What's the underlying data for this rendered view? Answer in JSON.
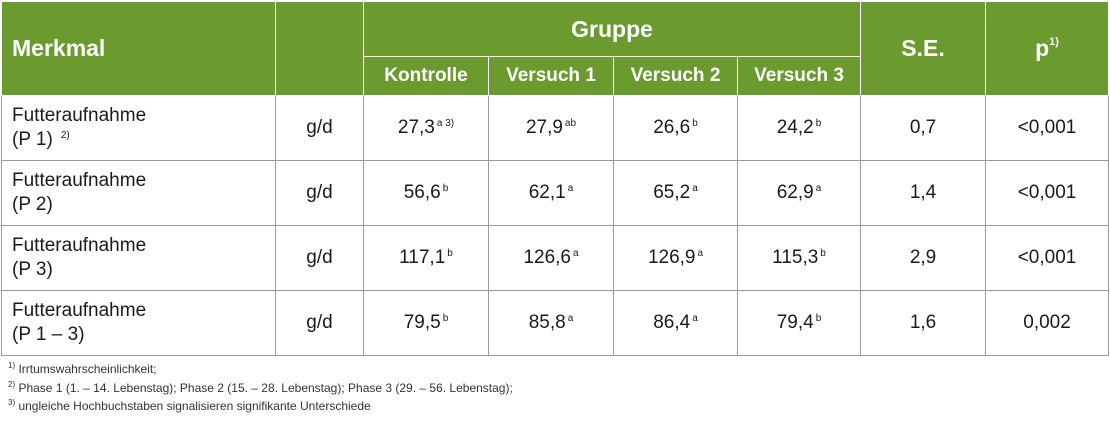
{
  "header": {
    "merkmal": "Merkmal",
    "gruppe": "Gruppe",
    "groups": [
      "Kontrolle",
      "Versuch 1",
      "Versuch 2",
      "Versuch 3"
    ],
    "se": "S.E.",
    "p": "p",
    "p_sup": "1)"
  },
  "rows": [
    {
      "merkmal_line1": "Futteraufnahme",
      "merkmal_line2": "(P 1)",
      "merkmal_sup": "2)",
      "unit": "g/d",
      "values": [
        {
          "v": "27,3",
          "s": "a 3)"
        },
        {
          "v": "27,9",
          "s": "ab"
        },
        {
          "v": "26,6",
          "s": "b"
        },
        {
          "v": "24,2",
          "s": "b"
        }
      ],
      "se": "0,7",
      "p": "<0,001"
    },
    {
      "merkmal_line1": "Futteraufnahme",
      "merkmal_line2": "(P 2)",
      "merkmal_sup": "",
      "unit": "g/d",
      "values": [
        {
          "v": "56,6",
          "s": "b"
        },
        {
          "v": "62,1",
          "s": "a"
        },
        {
          "v": "65,2",
          "s": "a"
        },
        {
          "v": "62,9",
          "s": "a"
        }
      ],
      "se": "1,4",
      "p": "<0,001"
    },
    {
      "merkmal_line1": "Futteraufnahme",
      "merkmal_line2": "(P 3)",
      "merkmal_sup": "",
      "unit": "g/d",
      "values": [
        {
          "v": "117,1",
          "s": "b"
        },
        {
          "v": "126,6",
          "s": "a"
        },
        {
          "v": "126,9",
          "s": "a"
        },
        {
          "v": "115,3",
          "s": "b"
        }
      ],
      "se": "2,9",
      "p": "<0,001"
    },
    {
      "merkmal_line1": "Futteraufnahme",
      "merkmal_line2": "(P 1 – 3)",
      "merkmal_sup": "",
      "unit": "g/d",
      "values": [
        {
          "v": "79,5",
          "s": "b"
        },
        {
          "v": "85,8",
          "s": "a"
        },
        {
          "v": "86,4",
          "s": "a"
        },
        {
          "v": "79,4",
          "s": "b"
        }
      ],
      "se": "1,6",
      "p": "0,002"
    }
  ],
  "footnotes": [
    {
      "sup": "1)",
      "text": " Irrtumswahrscheinlichkeit;"
    },
    {
      "sup": "2)",
      "text": " Phase 1 (1. – 14. Lebenstag); Phase 2 (15. – 28. Lebenstag); Phase 3 (29. – 56. Lebenstag);"
    },
    {
      "sup": "3)",
      "text": " ungleiche Hochbuchstaben signalisieren signifikante Unterschiede"
    }
  ],
  "colors": {
    "header_bg": "#6b9a2e",
    "header_text": "#ffffff",
    "border": "#9a9a9a"
  }
}
